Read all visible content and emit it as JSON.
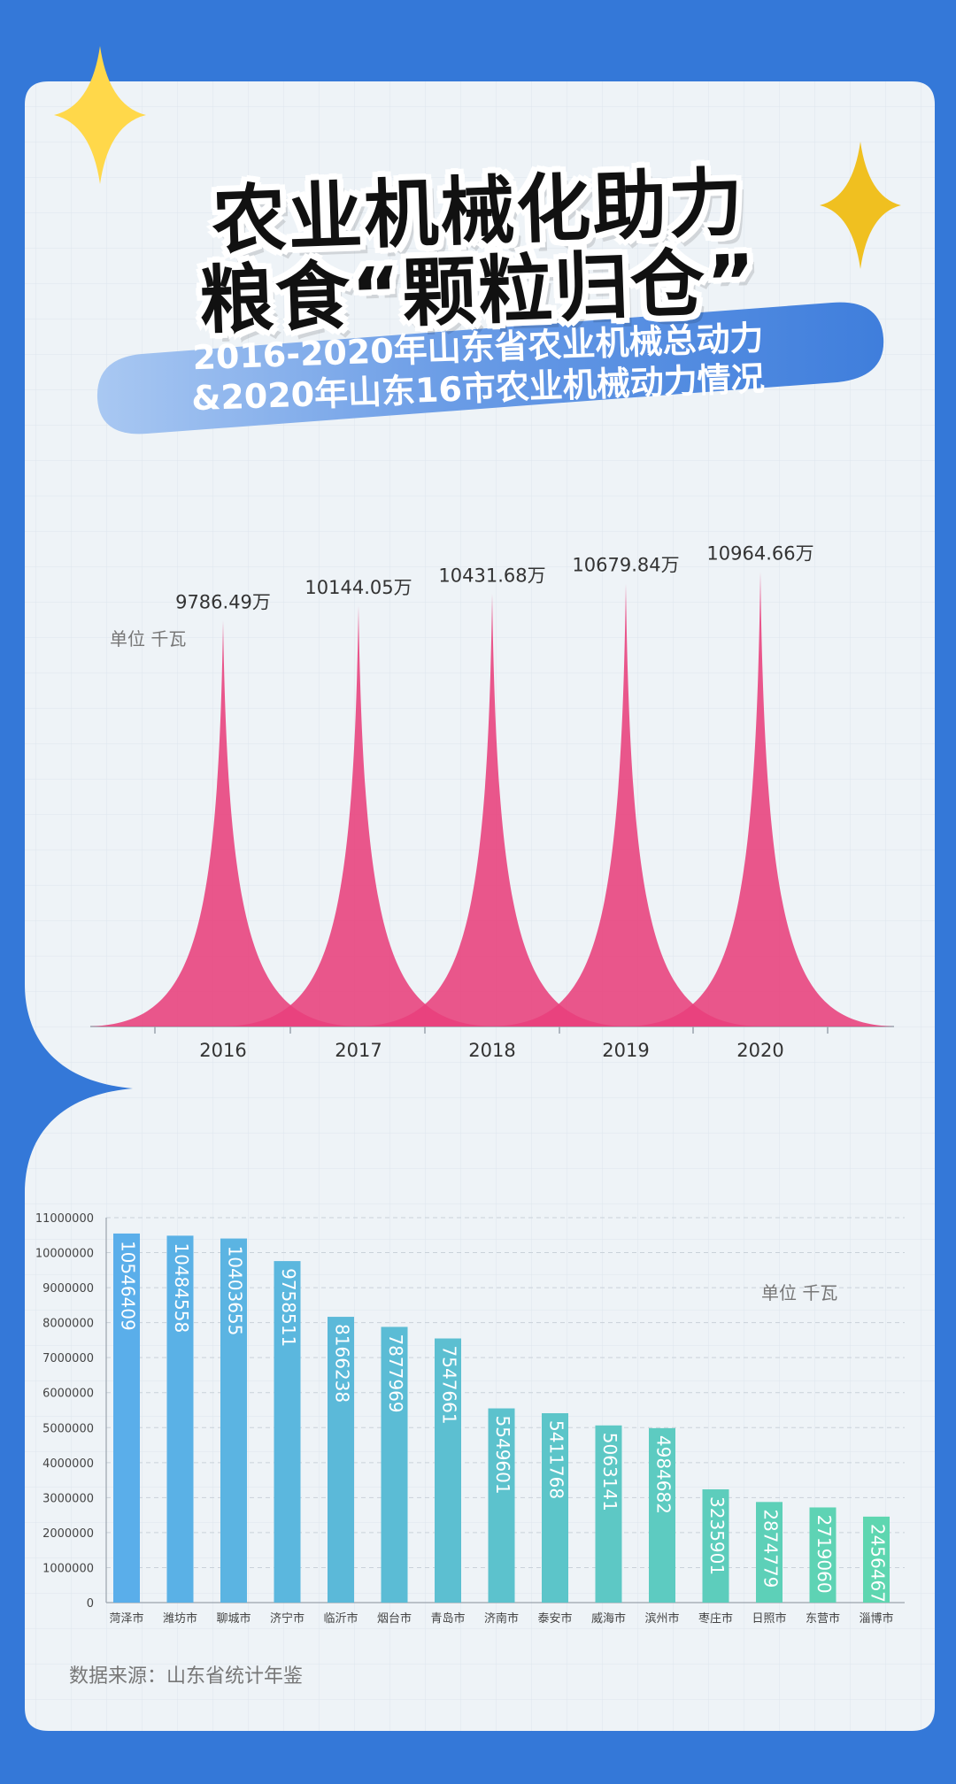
{
  "header": {
    "title_line1": "农业机械化助力",
    "title_line2": "粮食“颗粒归仓”",
    "subtitle_line1": "2016-2020年山东省农业机械总动力",
    "subtitle_line2": "&2020年山东16市农业机械动力情况"
  },
  "footer": {
    "source": "数据来源：山东省统计年鉴"
  },
  "colors": {
    "background": "#3478d8",
    "panel": "#eef3f7",
    "peak": "#e8407c",
    "star_light": "#ffd84a",
    "star_dark": "#f0c020",
    "bar_start": "#5aaeea",
    "bar_end": "#5ed6b0"
  },
  "icons": [
    "sparkle-star-icon",
    "sparkle-star-icon"
  ],
  "chart_data": [
    {
      "type": "area",
      "title": "",
      "unit": "单位 千瓦",
      "categories": [
        "2016",
        "2017",
        "2018",
        "2019",
        "2020"
      ],
      "values": [
        9786.49,
        10144.05,
        10431.68,
        10679.84,
        10964.66
      ],
      "value_labels": [
        "9786.49万",
        "10144.05万",
        "10431.68万",
        "10679.84万",
        "10964.66万"
      ],
      "grid": true
    },
    {
      "type": "bar",
      "title": "",
      "unit": "单位 千瓦",
      "categories": [
        "菏泽市",
        "潍坊市",
        "聊城市",
        "济宁市",
        "临沂市",
        "烟台市",
        "青岛市",
        "济南市",
        "泰安市",
        "威海市",
        "滨州市",
        "枣庄市",
        "日照市",
        "东营市",
        "淄博市"
      ],
      "values": [
        10546409,
        10484558,
        10403655,
        9758511,
        8166238,
        7877969,
        7547661,
        5549601,
        5411768,
        5063141,
        4984682,
        3235901,
        2874779,
        2719060,
        2456467
      ],
      "ylim": [
        0,
        11000000
      ],
      "yticks": [
        "0",
        "1000000",
        "2000000",
        "3000000",
        "4000000",
        "5000000",
        "6000000",
        "7000000",
        "8000000",
        "9000000",
        "10000000",
        "11000000"
      ],
      "grid": true
    }
  ]
}
